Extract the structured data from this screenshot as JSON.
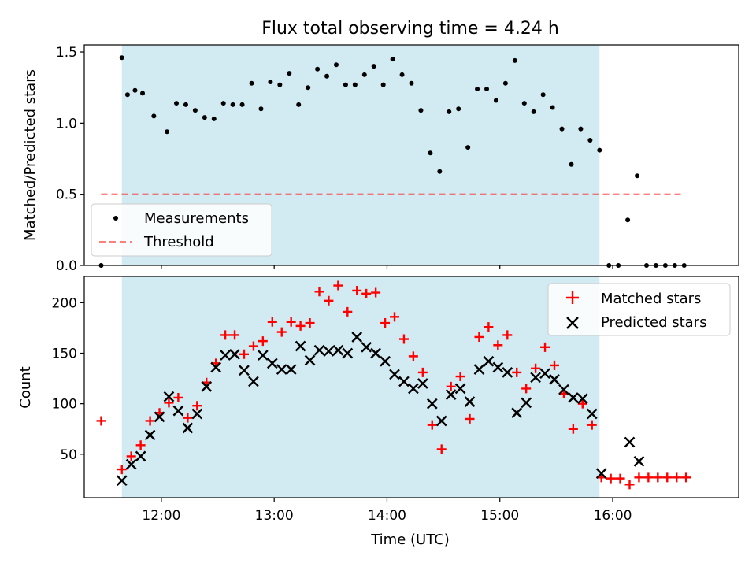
{
  "chart_data": {
    "title": "Flux total observing time = 4.24 h",
    "xlabel": "Time (UTC)",
    "x_ticks": [
      "12:00",
      "13:00",
      "14:00",
      "15:00",
      "16:00"
    ],
    "xlim": [
      "11:19",
      "17:07"
    ],
    "shaded_interval": [
      "11:39",
      "15:53"
    ],
    "shade_color": "#add8e6",
    "panels": [
      {
        "type": "scatter",
        "ylabel": "Matched/Predicted stars",
        "ylim": [
          0,
          1.55
        ],
        "y_ticks": [
          "0.0",
          "0.5",
          "1.0",
          "1.5"
        ],
        "threshold": {
          "name": "Threshold",
          "y": 0.5,
          "x_range": [
            "11:28",
            "16:38"
          ],
          "color": "#ff0000"
        },
        "legend": {
          "position": "lower-left",
          "entries": [
            "Measurements",
            "Threshold"
          ]
        },
        "series": [
          {
            "name": "Measurements",
            "marker": "dot",
            "color": "#000000",
            "points": [
              [
                "11:28",
                0.0
              ],
              [
                "11:39",
                1.46
              ],
              [
                "11:42",
                1.2
              ],
              [
                "11:46",
                1.23
              ],
              [
                "11:50",
                1.21
              ],
              [
                "11:56",
                1.05
              ],
              [
                "12:03",
                0.94
              ],
              [
                "12:08",
                1.14
              ],
              [
                "12:13",
                1.13
              ],
              [
                "12:18",
                1.09
              ],
              [
                "12:23",
                1.04
              ],
              [
                "12:28",
                1.03
              ],
              [
                "12:33",
                1.14
              ],
              [
                "12:38",
                1.13
              ],
              [
                "12:43",
                1.13
              ],
              [
                "12:48",
                1.28
              ],
              [
                "12:53",
                1.1
              ],
              [
                "12:58",
                1.29
              ],
              [
                "13:03",
                1.27
              ],
              [
                "13:08",
                1.35
              ],
              [
                "13:13",
                1.13
              ],
              [
                "13:18",
                1.25
              ],
              [
                "13:23",
                1.38
              ],
              [
                "13:28",
                1.33
              ],
              [
                "13:33",
                1.41
              ],
              [
                "13:38",
                1.27
              ],
              [
                "13:43",
                1.27
              ],
              [
                "13:48",
                1.34
              ],
              [
                "13:53",
                1.4
              ],
              [
                "13:58",
                1.27
              ],
              [
                "14:03",
                1.45
              ],
              [
                "14:08",
                1.34
              ],
              [
                "14:13",
                1.28
              ],
              [
                "14:18",
                1.09
              ],
              [
                "14:23",
                0.79
              ],
              [
                "14:28",
                0.66
              ],
              [
                "14:33",
                1.08
              ],
              [
                "14:38",
                1.1
              ],
              [
                "14:43",
                0.83
              ],
              [
                "14:48",
                1.24
              ],
              [
                "14:53",
                1.24
              ],
              [
                "14:58",
                1.16
              ],
              [
                "15:03",
                1.28
              ],
              [
                "15:08",
                1.44
              ],
              [
                "15:13",
                1.14
              ],
              [
                "15:18",
                1.08
              ],
              [
                "15:23",
                1.2
              ],
              [
                "15:28",
                1.11
              ],
              [
                "15:33",
                0.96
              ],
              [
                "15:38",
                0.71
              ],
              [
                "15:43",
                0.96
              ],
              [
                "15:48",
                0.88
              ],
              [
                "15:53",
                0.81
              ],
              [
                "15:58",
                0.0
              ],
              [
                "16:03",
                0.0
              ],
              [
                "16:08",
                0.32
              ],
              [
                "16:13",
                0.63
              ],
              [
                "16:18",
                0.0
              ],
              [
                "16:23",
                0.0
              ],
              [
                "16:28",
                0.0
              ],
              [
                "16:33",
                0.0
              ],
              [
                "16:38",
                0.0
              ]
            ]
          }
        ]
      },
      {
        "type": "scatter",
        "ylabel": "Count",
        "ylim": [
          7,
          226
        ],
        "y_ticks": [
          "50",
          "100",
          "150",
          "200"
        ],
        "legend": {
          "position": "upper-right",
          "entries": [
            "Matched stars",
            "Predicted stars"
          ]
        },
        "series": [
          {
            "name": "Matched stars",
            "marker": "plus",
            "color": "#ff0000",
            "points": [
              [
                "11:28",
                83
              ],
              [
                "11:39",
                35
              ],
              [
                "11:44",
                48
              ],
              [
                "11:49",
                59
              ],
              [
                "11:54",
                83
              ],
              [
                "11:59",
                91
              ],
              [
                "12:04",
                101
              ],
              [
                "12:09",
                106
              ],
              [
                "12:14",
                86
              ],
              [
                "12:19",
                98
              ],
              [
                "12:24",
                121
              ],
              [
                "12:29",
                140
              ],
              [
                "12:34",
                168
              ],
              [
                "12:39",
                168
              ],
              [
                "12:44",
                149
              ],
              [
                "12:49",
                157
              ],
              [
                "12:54",
                162
              ],
              [
                "12:59",
                181
              ],
              [
                "13:04",
                171
              ],
              [
                "13:09",
                181
              ],
              [
                "13:14",
                177
              ],
              [
                "13:19",
                180
              ],
              [
                "13:24",
                211
              ],
              [
                "13:29",
                202
              ],
              [
                "13:34",
                217
              ],
              [
                "13:39",
                191
              ],
              [
                "13:44",
                212
              ],
              [
                "13:49",
                209
              ],
              [
                "13:54",
                210
              ],
              [
                "13:59",
                180
              ],
              [
                "14:04",
                186
              ],
              [
                "14:09",
                164
              ],
              [
                "14:14",
                147
              ],
              [
                "14:19",
                131
              ],
              [
                "14:24",
                79
              ],
              [
                "14:29",
                55
              ],
              [
                "14:34",
                117
              ],
              [
                "14:39",
                127
              ],
              [
                "14:44",
                85
              ],
              [
                "14:49",
                166
              ],
              [
                "14:54",
                176
              ],
              [
                "14:59",
                158
              ],
              [
                "15:04",
                168
              ],
              [
                "15:09",
                131
              ],
              [
                "15:14",
                115
              ],
              [
                "15:19",
                135
              ],
              [
                "15:24",
                156
              ],
              [
                "15:29",
                138
              ],
              [
                "15:34",
                110
              ],
              [
                "15:39",
                75
              ],
              [
                "15:44",
                100
              ],
              [
                "15:49",
                79
              ],
              [
                "15:54",
                27
              ],
              [
                "15:59",
                26
              ],
              [
                "16:04",
                26
              ],
              [
                "16:09",
                20
              ],
              [
                "16:14",
                27
              ],
              [
                "16:19",
                27
              ],
              [
                "16:24",
                27
              ],
              [
                "16:29",
                27
              ],
              [
                "16:34",
                27
              ],
              [
                "16:39",
                27
              ]
            ]
          },
          {
            "name": "Predicted stars",
            "marker": "x",
            "color": "#000000",
            "points": [
              [
                "11:39",
                24
              ],
              [
                "11:44",
                40
              ],
              [
                "11:49",
                48
              ],
              [
                "11:54",
                69
              ],
              [
                "11:59",
                87
              ],
              [
                "12:04",
                107
              ],
              [
                "12:09",
                93
              ],
              [
                "12:14",
                76
              ],
              [
                "12:19",
                90
              ],
              [
                "12:24",
                117
              ],
              [
                "12:29",
                136
              ],
              [
                "12:34",
                148
              ],
              [
                "12:39",
                149
              ],
              [
                "12:44",
                133
              ],
              [
                "12:49",
                122
              ],
              [
                "12:54",
                148
              ],
              [
                "12:59",
                140
              ],
              [
                "13:04",
                134
              ],
              [
                "13:09",
                134
              ],
              [
                "13:14",
                157
              ],
              [
                "13:19",
                143
              ],
              [
                "13:24",
                153
              ],
              [
                "13:29",
                152
              ],
              [
                "13:34",
                153
              ],
              [
                "13:39",
                150
              ],
              [
                "13:44",
                166
              ],
              [
                "13:49",
                156
              ],
              [
                "13:54",
                150
              ],
              [
                "13:59",
                142
              ],
              [
                "14:04",
                129
              ],
              [
                "14:09",
                122
              ],
              [
                "14:14",
                115
              ],
              [
                "14:19",
                120
              ],
              [
                "14:24",
                100
              ],
              [
                "14:29",
                83
              ],
              [
                "14:34",
                109
              ],
              [
                "14:39",
                115
              ],
              [
                "14:44",
                102
              ],
              [
                "14:49",
                134
              ],
              [
                "14:54",
                142
              ],
              [
                "14:59",
                136
              ],
              [
                "15:04",
                131
              ],
              [
                "15:09",
                91
              ],
              [
                "15:14",
                101
              ],
              [
                "15:19",
                126
              ],
              [
                "15:24",
                130
              ],
              [
                "15:29",
                124
              ],
              [
                "15:34",
                114
              ],
              [
                "15:39",
                106
              ],
              [
                "15:44",
                105
              ],
              [
                "15:49",
                90
              ],
              [
                "15:54",
                31
              ],
              [
                "16:09",
                62
              ],
              [
                "16:14",
                43
              ]
            ]
          }
        ]
      }
    ]
  }
}
